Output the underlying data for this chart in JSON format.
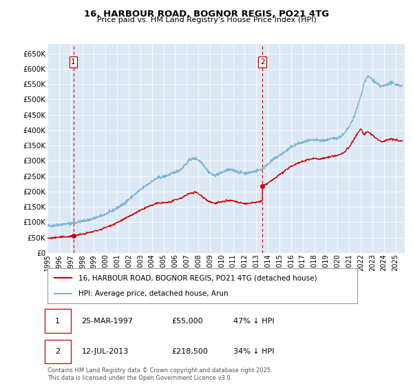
{
  "title": "16, HARBOUR ROAD, BOGNOR REGIS, PO21 4TG",
  "subtitle": "Price paid vs. HM Land Registry's House Price Index (HPI)",
  "legend_line1": "16, HARBOUR ROAD, BOGNOR REGIS, PO21 4TG (detached house)",
  "legend_line2": "HPI: Average price, detached house, Arun",
  "annotation1_date": "25-MAR-1997",
  "annotation1_price": "£55,000",
  "annotation1_hpi": "47% ↓ HPI",
  "annotation2_date": "12-JUL-2013",
  "annotation2_price": "£218,500",
  "annotation2_hpi": "34% ↓ HPI",
  "footer": "Contains HM Land Registry data © Crown copyright and database right 2025.\nThis data is licensed under the Open Government Licence v3.0.",
  "hpi_color": "#7ab4d8",
  "sale_color": "#cc0000",
  "ylim": [
    0,
    680000
  ],
  "yticks": [
    0,
    50000,
    100000,
    150000,
    200000,
    250000,
    300000,
    350000,
    400000,
    450000,
    500000,
    550000,
    600000,
    650000
  ],
  "xlim_start": 1995.0,
  "xlim_end": 2025.8,
  "xtick_years": [
    1995,
    1996,
    1997,
    1998,
    1999,
    2000,
    2001,
    2002,
    2003,
    2004,
    2005,
    2006,
    2007,
    2008,
    2009,
    2010,
    2011,
    2012,
    2013,
    2014,
    2015,
    2016,
    2017,
    2018,
    2019,
    2020,
    2021,
    2022,
    2023,
    2024,
    2025
  ],
  "marker1_x": 1997.23,
  "marker1_y": 55000,
  "marker2_x": 2013.53,
  "marker2_y": 218500,
  "bg_color": "#dce9f5",
  "white_color": "#ffffff"
}
